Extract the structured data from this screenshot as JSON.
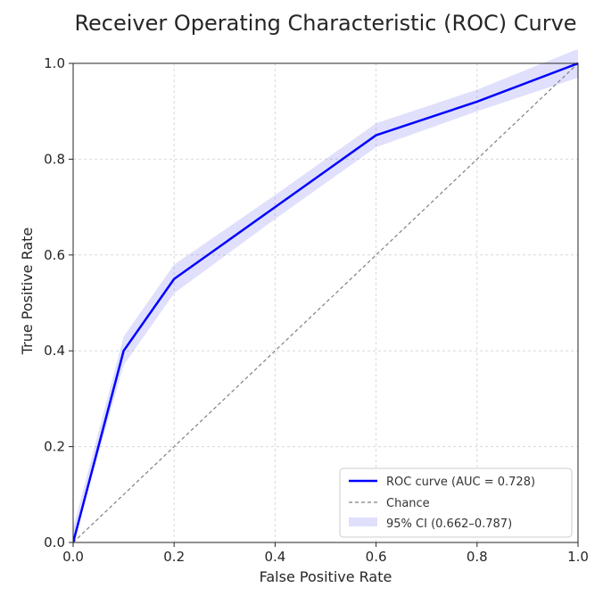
{
  "chart_data": {
    "type": "line",
    "title": "Receiver Operating Characteristic (ROC) Curve",
    "xlabel": "False Positive Rate",
    "ylabel": "True Positive Rate",
    "xlim": [
      0.0,
      1.0
    ],
    "ylim": [
      0.0,
      1.0
    ],
    "grid": true,
    "x_ticks": [
      "0.0",
      "0.2",
      "0.4",
      "0.6",
      "0.8",
      "1.0"
    ],
    "y_ticks": [
      "0.0",
      "0.2",
      "0.4",
      "0.6",
      "0.8",
      "1.0"
    ],
    "legend_position": "lower-right",
    "series": [
      {
        "name": "ROC curve (AUC = 0.728)",
        "color": "#0000ff",
        "style": "solid",
        "x": [
          0.0,
          0.1,
          0.2,
          0.4,
          0.6,
          0.8,
          1.0
        ],
        "y": [
          0.0,
          0.4,
          0.55,
          0.7,
          0.85,
          0.92,
          1.0
        ]
      },
      {
        "name": "Chance",
        "color": "#808080",
        "style": "dashed",
        "x": [
          0.0,
          1.0
        ],
        "y": [
          0.0,
          1.0
        ]
      }
    ],
    "band": {
      "name": "95% CI (0.662–0.787)",
      "color": "#6666ee",
      "x": [
        0.0,
        0.1,
        0.2,
        0.4,
        0.6,
        0.8,
        1.0
      ],
      "lower": [
        0.0,
        0.37,
        0.52,
        0.675,
        0.825,
        0.9,
        0.97
      ],
      "upper": [
        0.03,
        0.43,
        0.58,
        0.725,
        0.875,
        0.945,
        1.03
      ]
    }
  }
}
